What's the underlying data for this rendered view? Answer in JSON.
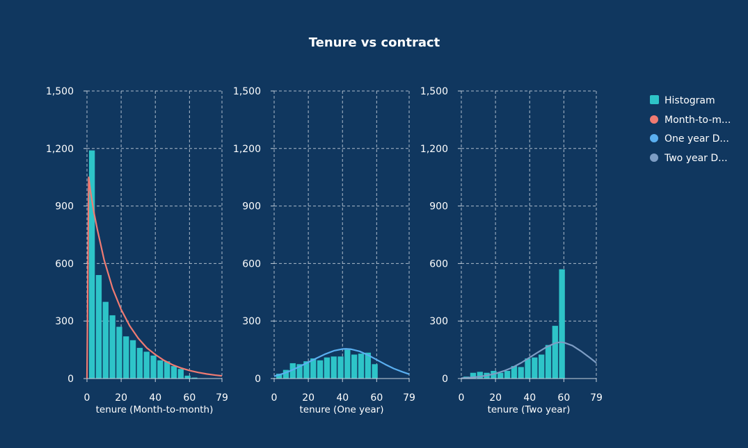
{
  "chart_data": {
    "type": "bar",
    "title": "Tenure vs contract",
    "colors": {
      "background": "#10375f",
      "histogram": "#2ec4c8",
      "month_to_month": "#f07b72",
      "one_year": "#5aaff0",
      "two_year": "#7d9dc4"
    },
    "legend": {
      "placement": "right",
      "entries": [
        "Histogram",
        "Month-to-m...",
        "One year D...",
        "Two year D..."
      ]
    },
    "yticks": [
      0,
      300,
      600,
      900,
      1200,
      1500
    ],
    "ytick_labels": [
      "0",
      "300",
      "600",
      "900",
      "1,200",
      "1,500"
    ],
    "xticks": [
      0,
      20,
      40,
      60,
      79
    ],
    "ylim": [
      0,
      1500
    ],
    "xlim": [
      0,
      79
    ],
    "grid": true,
    "panels": [
      {
        "xlabel": "tenure (Month-to-month)",
        "histogram": {
          "bin_edges": [
            1,
            5,
            9,
            13,
            17,
            21,
            25,
            29,
            33,
            37,
            41,
            45,
            49,
            53,
            57,
            61,
            65,
            69,
            73
          ],
          "values": [
            1190,
            540,
            400,
            330,
            270,
            220,
            200,
            160,
            140,
            120,
            95,
            90,
            65,
            50,
            15,
            5,
            0,
            0
          ]
        },
        "density": {
          "name": "Month-to-month",
          "x": [
            0,
            1,
            2,
            4,
            6,
            8,
            10,
            15,
            20,
            25,
            30,
            35,
            40,
            45,
            50,
            55,
            60,
            65,
            70,
            75,
            79
          ],
          "y": [
            0,
            1050,
            980,
            870,
            780,
            700,
            620,
            470,
            360,
            275,
            210,
            160,
            125,
            95,
            72,
            55,
            42,
            32,
            24,
            18,
            14
          ]
        }
      },
      {
        "xlabel": "tenure (One year)",
        "histogram": {
          "bin_edges": [
            1,
            5,
            9,
            13,
            17,
            21,
            25,
            29,
            33,
            37,
            41,
            45,
            49,
            53,
            57,
            61,
            65,
            69,
            73
          ],
          "values": [
            25,
            45,
            80,
            75,
            90,
            105,
            95,
            110,
            115,
            115,
            150,
            125,
            130,
            135,
            75,
            0,
            0,
            0
          ]
        },
        "density": {
          "name": "One year",
          "x": [
            0,
            5,
            10,
            15,
            20,
            25,
            30,
            35,
            40,
            42,
            45,
            50,
            55,
            60,
            65,
            70,
            75,
            79
          ],
          "y": [
            12,
            25,
            42,
            63,
            85,
            107,
            128,
            145,
            154,
            155,
            153,
            142,
            122,
            98,
            74,
            52,
            35,
            23
          ]
        }
      },
      {
        "xlabel": "tenure (Two year)",
        "histogram": {
          "bin_edges": [
            1,
            5,
            9,
            13,
            17,
            21,
            25,
            29,
            33,
            37,
            41,
            45,
            49,
            53,
            57,
            61,
            65,
            69,
            73
          ],
          "values": [
            10,
            30,
            35,
            30,
            40,
            30,
            40,
            65,
            60,
            105,
            110,
            125,
            175,
            275,
            570,
            0,
            0,
            0
          ]
        },
        "density": {
          "name": "Two year",
          "x": [
            0,
            5,
            10,
            15,
            20,
            25,
            30,
            35,
            40,
            45,
            50,
            55,
            58,
            60,
            65,
            70,
            75,
            79
          ],
          "y": [
            2,
            5,
            9,
            16,
            26,
            40,
            58,
            82,
            110,
            138,
            165,
            185,
            190,
            188,
            172,
            143,
            110,
            82
          ]
        }
      }
    ]
  }
}
